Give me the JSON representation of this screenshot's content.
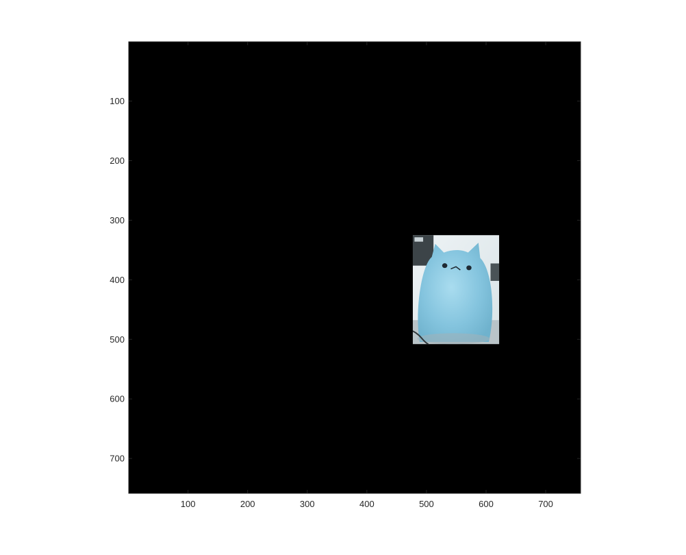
{
  "chart_data": {
    "type": "image",
    "title": "",
    "xlabel": "",
    "ylabel": "",
    "xlim": [
      0.5,
      758.5
    ],
    "ylim": [
      0.5,
      758.5
    ],
    "y_direction": "reversed",
    "background_color": "#000000",
    "axes_frame_color": "#262626",
    "grid": false,
    "x_ticks": [
      100,
      200,
      300,
      400,
      500,
      600,
      700
    ],
    "x_tick_labels": [
      "100",
      "200",
      "300",
      "400",
      "500",
      "600",
      "700"
    ],
    "y_ticks": [
      100,
      200,
      300,
      400,
      500,
      600,
      700
    ],
    "y_tick_labels": [
      "100",
      "200",
      "300",
      "400",
      "500",
      "600",
      "700"
    ],
    "image_patch": {
      "description_icon": "cat-figurine-photo",
      "x_range": [
        477,
        622
      ],
      "y_range": [
        325,
        508
      ],
      "dominant_colors": [
        "#8cc8e0",
        "#e8eef0",
        "#3c4448"
      ]
    }
  }
}
